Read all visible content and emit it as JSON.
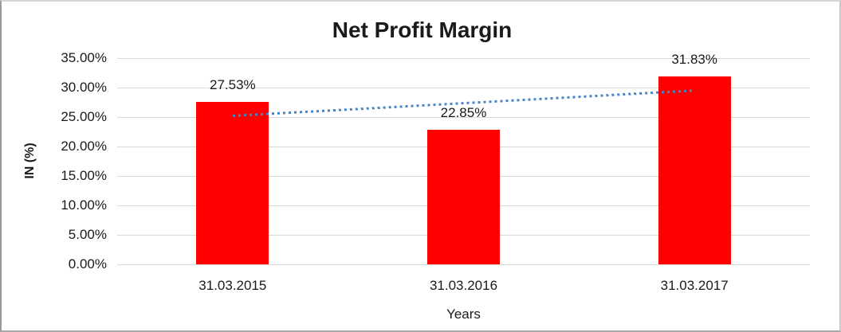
{
  "chart_data": {
    "type": "bar",
    "title": "Net Profit Margin",
    "xlabel": "Years",
    "ylabel": "IN (%)",
    "categories": [
      "31.03.2015",
      "31.03.2016",
      "31.03.2017"
    ],
    "values": [
      27.53,
      22.85,
      31.83
    ],
    "data_labels": [
      "27.53%",
      "22.85%",
      "31.83%"
    ],
    "ylim": [
      0,
      35
    ],
    "ytick_step": 5,
    "ytick_labels": [
      "0.00%",
      "5.00%",
      "10.00%",
      "15.00%",
      "20.00%",
      "25.00%",
      "30.00%",
      "35.00%"
    ],
    "grid": true,
    "legend": "none",
    "trendline": {
      "type": "linear",
      "style": "dotted",
      "start_value": 25.25,
      "end_value": 29.55
    },
    "colors": {
      "bar": "#FF0000",
      "trendline": "#4585C8",
      "gridline": "#D9D9D9",
      "text": "#1A1A1A",
      "background": "#FFFFFF"
    }
  }
}
